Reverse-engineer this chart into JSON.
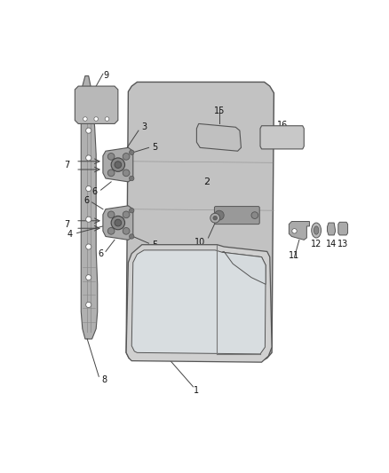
{
  "bg_color": "#ffffff",
  "fig_width": 4.38,
  "fig_height": 5.33,
  "door_color": "#c0c0c0",
  "door_edge": "#555555",
  "pillar_color": "#b8b8b8",
  "hinge_color": "#aaaaaa",
  "part_color": "#bbbbbb",
  "label_fs": 7,
  "line_color": "#444444"
}
